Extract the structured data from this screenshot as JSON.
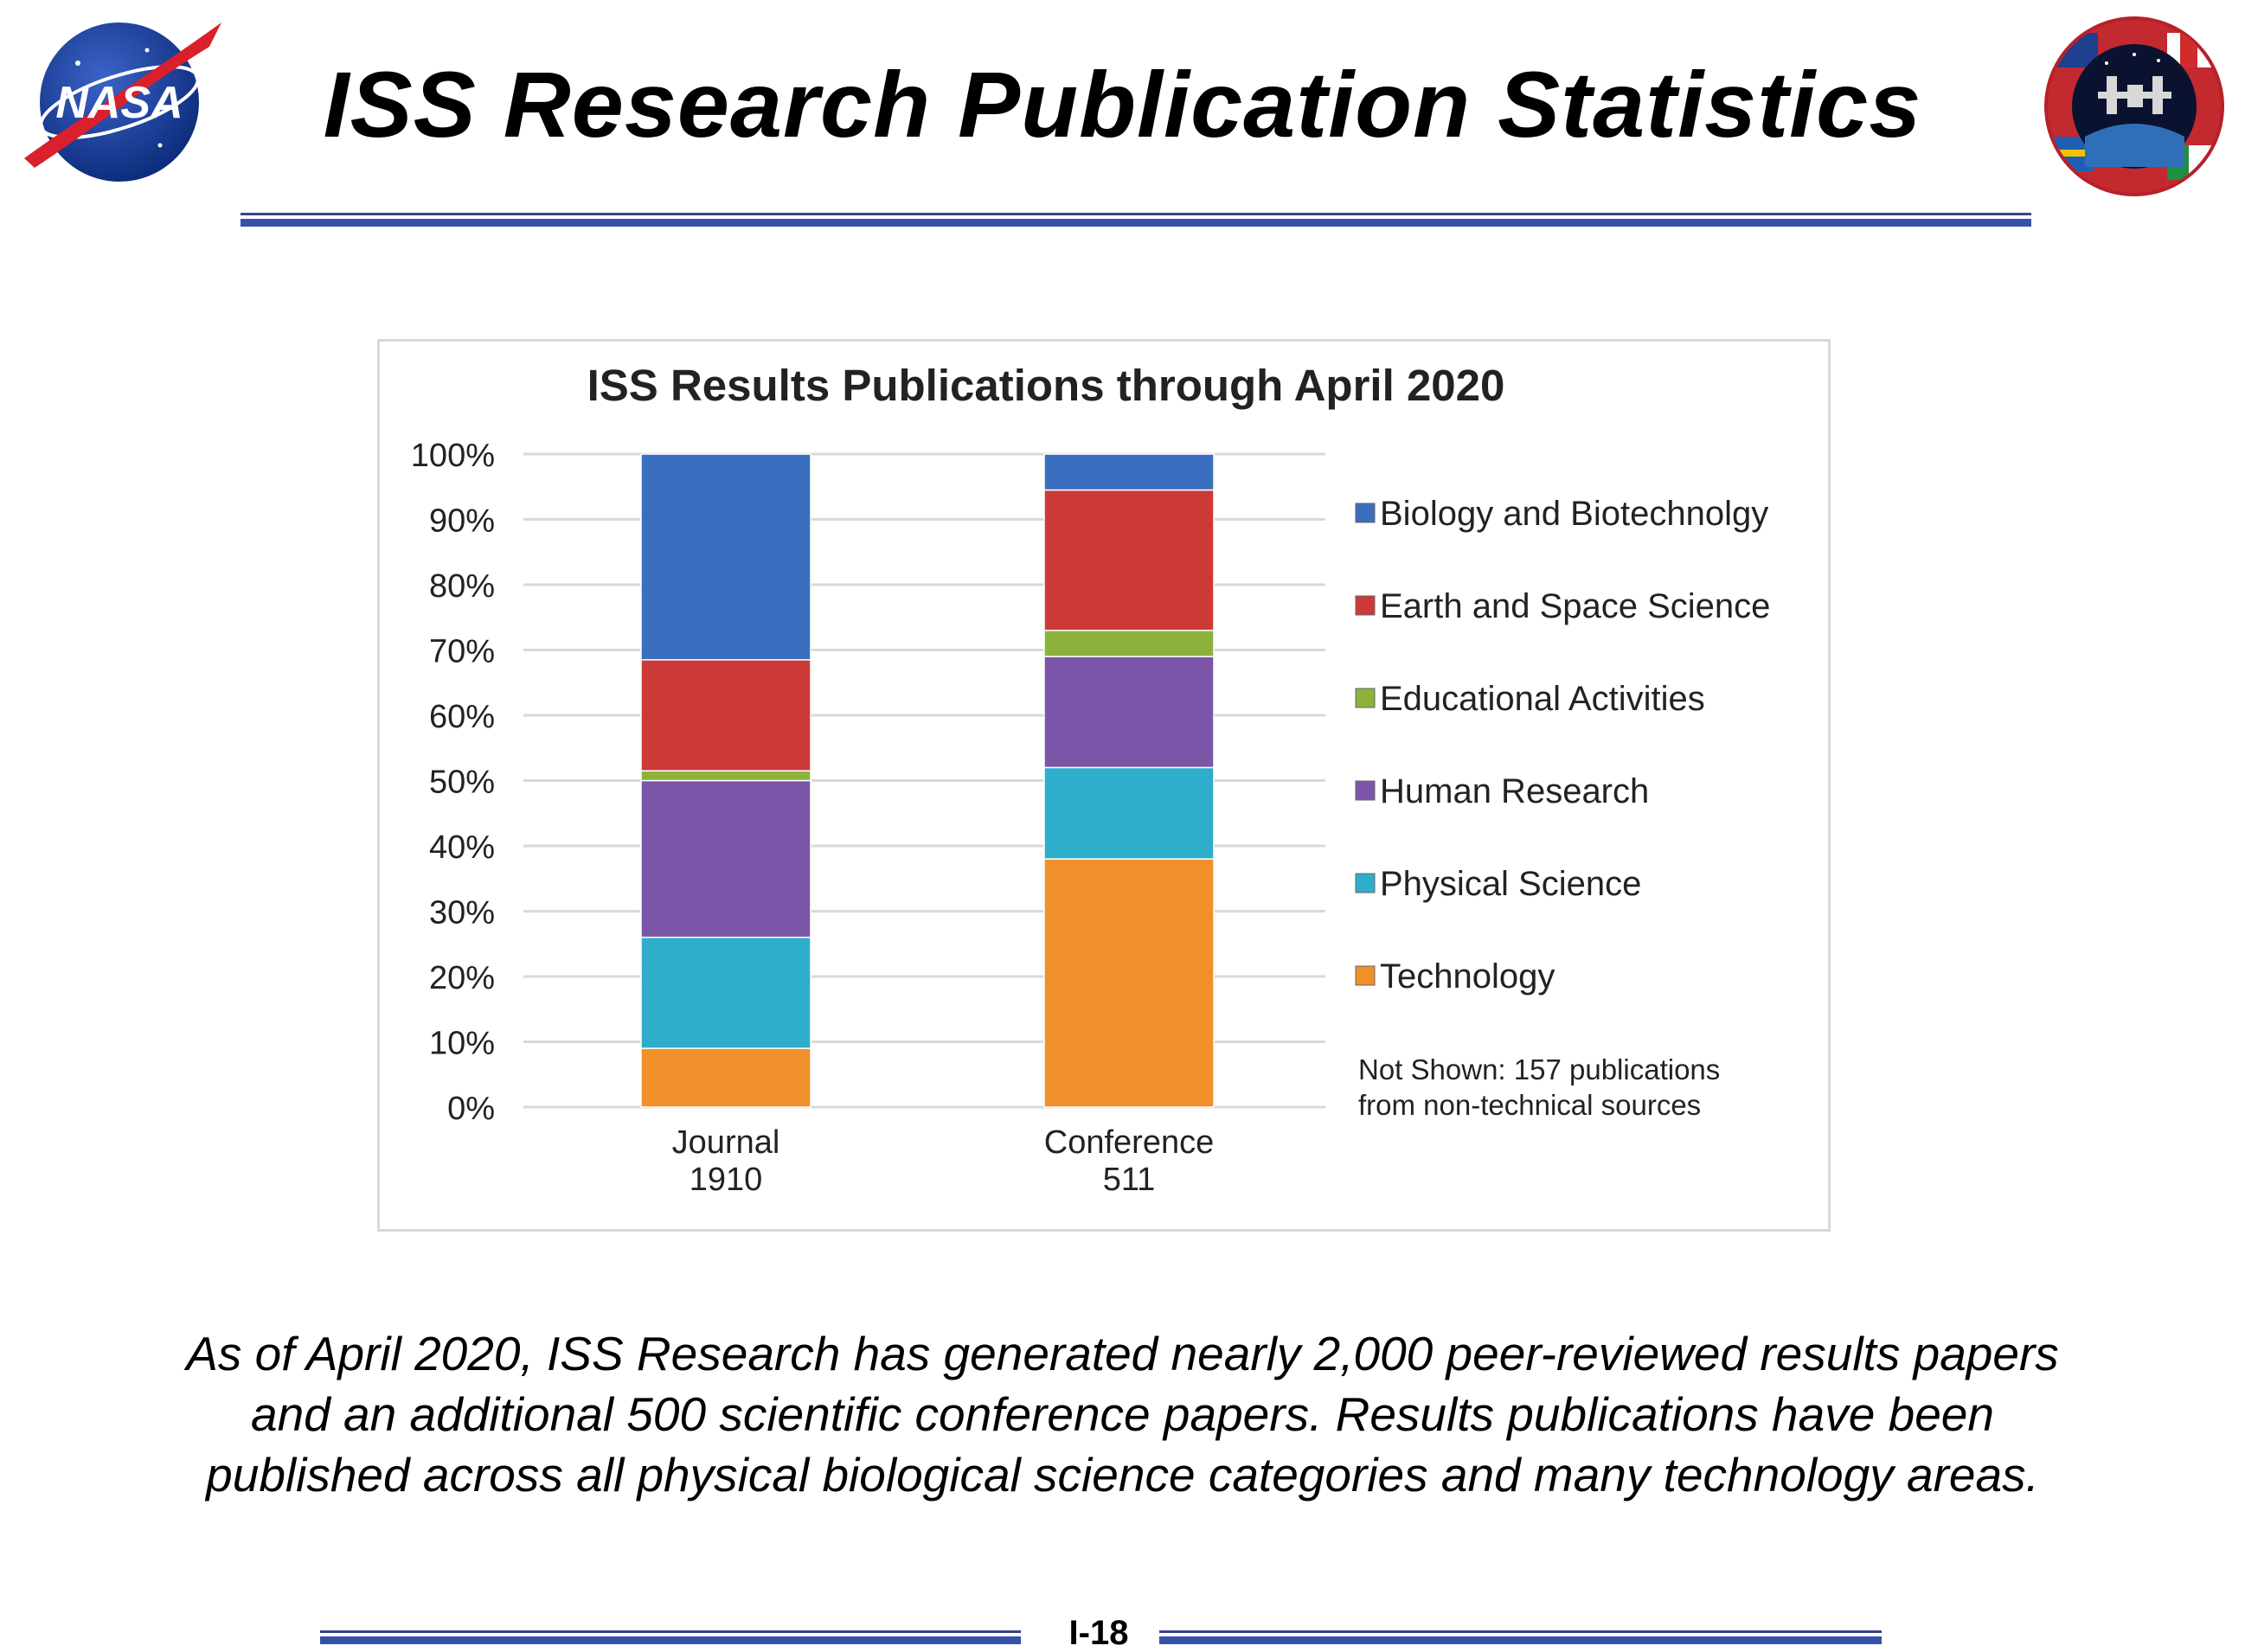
{
  "slide": {
    "title": "ISS Research Publication Statistics",
    "caption_lines": [
      "As of April 2020, ISS Research has generated nearly 2,000 peer-reviewed results papers",
      "and an additional 500 scientific conference papers. Results publications have been",
      "published across all physical biological science categories and many technology areas."
    ],
    "page_number": "I-18",
    "logos": [
      "nasa-meatball-logo",
      "iss-partner-flags-emblem"
    ],
    "colors": {
      "rule": "#3552a8"
    }
  },
  "chart_data": {
    "type": "bar",
    "stacked": true,
    "percent": true,
    "title": "ISS Results Publications through April 2020",
    "xlabel": "",
    "ylabel": "",
    "ylim": [
      0,
      100
    ],
    "y_ticks": [
      "0%",
      "10%",
      "20%",
      "30%",
      "40%",
      "50%",
      "60%",
      "70%",
      "80%",
      "90%",
      "100%"
    ],
    "grid": true,
    "legend_position": "right",
    "categories": [
      {
        "name": "Journal",
        "count": "1910"
      },
      {
        "name": "Conference",
        "count": "511"
      }
    ],
    "series": [
      {
        "name": "Biology and Biotechnolgy",
        "color": "#3a6fbf",
        "values": [
          31.5,
          5.5
        ]
      },
      {
        "name": "Earth and Space Science",
        "color": "#cc3a37",
        "values": [
          17,
          21.5
        ]
      },
      {
        "name": "Educational Activities",
        "color": "#8cb23c",
        "values": [
          1.5,
          4
        ]
      },
      {
        "name": "Human Research",
        "color": "#7b55a8",
        "values": [
          24,
          17
        ]
      },
      {
        "name": "Physical Science",
        "color": "#2eaecb",
        "values": [
          17,
          14
        ]
      },
      {
        "name": "Technology",
        "color": "#f0902a",
        "values": [
          9,
          38
        ]
      }
    ],
    "annotation_lines": [
      "Not Shown: 157 publications",
      "from non-technical sources"
    ]
  }
}
